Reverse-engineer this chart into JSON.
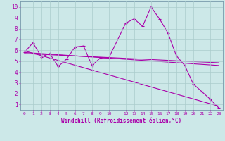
{
  "xlabel": "Windchill (Refroidissement éolien,°C)",
  "bg_color": "#cce8e8",
  "line_color": "#aa00aa",
  "grid_color": "#aacccc",
  "xlim": [
    -0.5,
    23.5
  ],
  "ylim": [
    0.5,
    10.5
  ],
  "xtick_vals": [
    0,
    1,
    2,
    3,
    4,
    5,
    6,
    7,
    8,
    9,
    10,
    12,
    13,
    14,
    15,
    16,
    17,
    18,
    19,
    20,
    21,
    22,
    23
  ],
  "ytick_vals": [
    1,
    2,
    3,
    4,
    5,
    6,
    7,
    8,
    9,
    10
  ],
  "line1_x": [
    0,
    1,
    2,
    3,
    4,
    5,
    6,
    7,
    8,
    9,
    10,
    12,
    13,
    14,
    15,
    16,
    17,
    18,
    19,
    20,
    21,
    22,
    23
  ],
  "line1_y": [
    5.8,
    6.7,
    5.4,
    5.7,
    4.5,
    5.2,
    6.3,
    6.4,
    4.6,
    5.3,
    5.3,
    8.5,
    8.9,
    8.2,
    10.0,
    8.9,
    7.6,
    5.5,
    4.6,
    2.9,
    2.2,
    1.5,
    0.7
  ],
  "line2_x": [
    0,
    23
  ],
  "line2_y": [
    5.95,
    0.85
  ],
  "line3_x": [
    0,
    23
  ],
  "line3_y": [
    5.8,
    4.6
  ],
  "line4_x": [
    0,
    23
  ],
  "line4_y": [
    5.7,
    4.85
  ]
}
